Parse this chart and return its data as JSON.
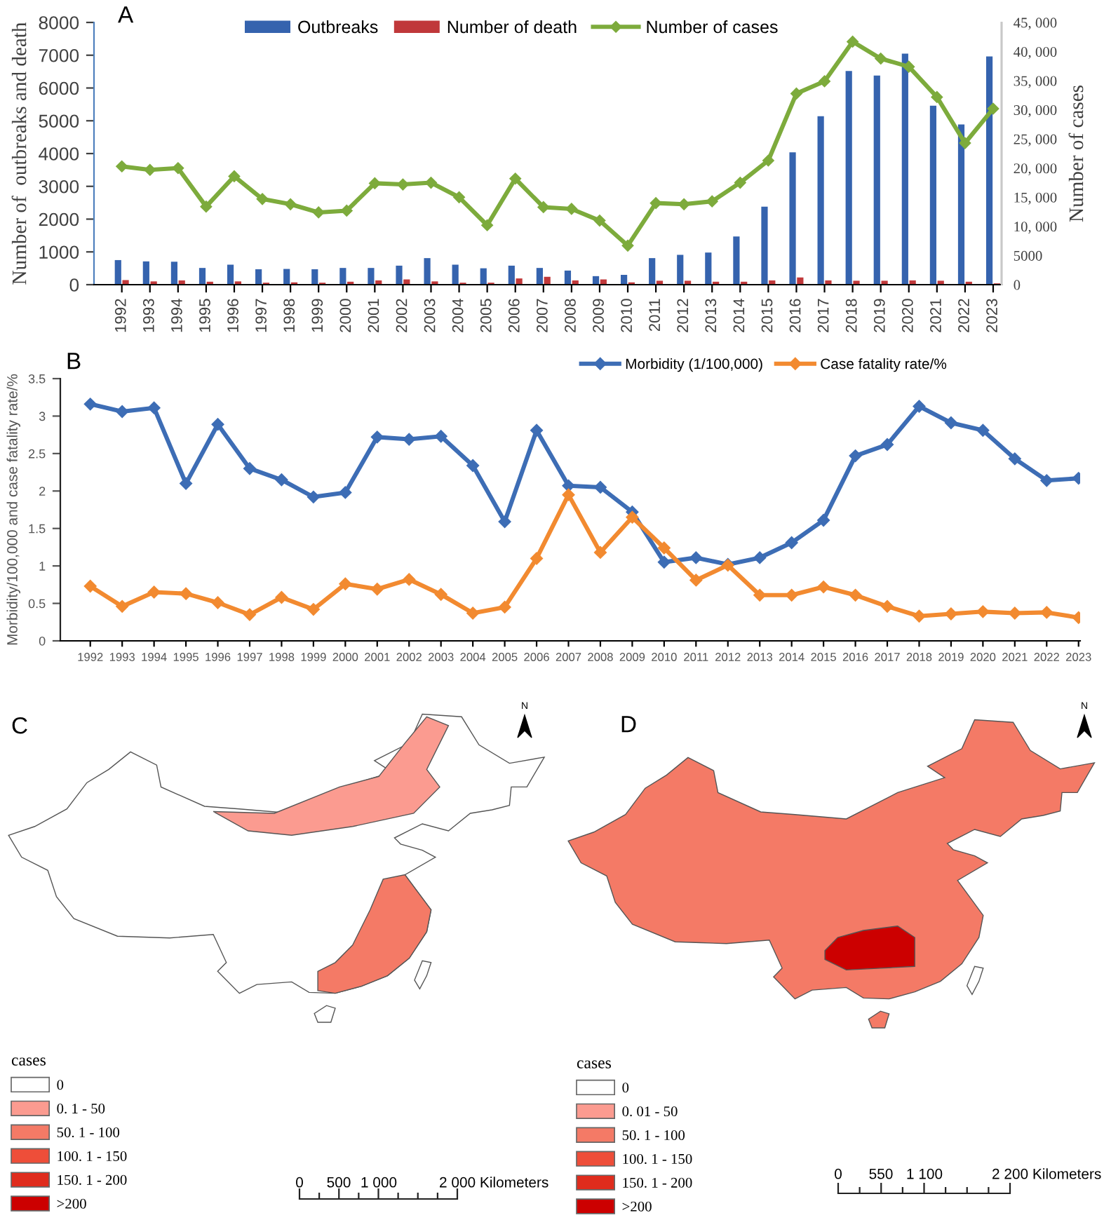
{
  "chart_data": [
    {
      "type": "bar",
      "title": "A",
      "categories": [
        "1992",
        "1993",
        "1994",
        "1995",
        "1996",
        "1997",
        "1998",
        "1999",
        "2000",
        "2001",
        "2002",
        "2003",
        "2004",
        "2005",
        "2006",
        "2007",
        "2008",
        "2009",
        "2010",
        "2011",
        "2012",
        "2013",
        "2014",
        "2015",
        "2016",
        "2017",
        "2018",
        "2019",
        "2020",
        "2021",
        "2022",
        "2023"
      ],
      "ylabel": "Number of  outbreaks and death",
      "y2label": "Number of cases",
      "ylim": [
        0,
        8000
      ],
      "yticks": [
        0,
        1000,
        2000,
        3000,
        4000,
        5000,
        6000,
        7000,
        8000
      ],
      "y2lim": [
        0,
        45000
      ],
      "y2ticks": [
        0,
        5000,
        {
          "value": 10000,
          "label": "10, 000"
        },
        {
          "value": 15000,
          "label": "15, 000"
        },
        {
          "value": 20000,
          "label": "20, 000"
        },
        {
          "value": 25000,
          "label": "25, 000"
        },
        {
          "value": 30000,
          "label": "30, 000"
        },
        {
          "value": 35000,
          "label": "35, 000"
        },
        {
          "value": 40000,
          "label": "40, 000"
        },
        {
          "value": 45000,
          "label": "45, 000"
        }
      ],
      "series": [
        {
          "name": "Outbreaks",
          "color": "#3563ae",
          "values": [
            750,
            710,
            700,
            510,
            610,
            470,
            480,
            470,
            510,
            510,
            580,
            810,
            610,
            500,
            580,
            510,
            430,
            260,
            300,
            810,
            910,
            980,
            1470,
            2380,
            4040,
            5140,
            6520,
            6380,
            7050,
            5460,
            4890,
            6960
          ]
        },
        {
          "name": "Number of death",
          "color": "#c0383a",
          "values": [
            140,
            100,
            130,
            90,
            100,
            60,
            70,
            60,
            90,
            130,
            160,
            100,
            60,
            60,
            190,
            240,
            130,
            160,
            70,
            120,
            120,
            90,
            90,
            130,
            220,
            130,
            120,
            120,
            130,
            120,
            90,
            40
          ]
        },
        {
          "name": "Number of cases",
          "type": "line",
          "axis": "y2",
          "color": "#7dab3c",
          "values": [
            20300,
            19700,
            20000,
            13400,
            18600,
            14700,
            13800,
            12400,
            12700,
            17400,
            17200,
            17500,
            15000,
            10200,
            18200,
            13300,
            13000,
            11000,
            6700,
            14000,
            13800,
            14300,
            17500,
            21300,
            32800,
            34900,
            41700,
            38800,
            37400,
            32200,
            24300,
            30200
          ]
        }
      ],
      "marker": "diamond",
      "line_style": "solid",
      "legend": "top"
    },
    {
      "type": "line",
      "title": "B",
      "categories": [
        "1992",
        "1993",
        "1994",
        "1995",
        "1996",
        "1997",
        "1998",
        "1999",
        "2000",
        "2001",
        "2002",
        "2003",
        "2004",
        "2005",
        "2006",
        "2007",
        "2008",
        "2009",
        "2010",
        "2011",
        "2012",
        "2013",
        "2014",
        "2015",
        "2016",
        "2017",
        "2018",
        "2019",
        "2020",
        "2021",
        "2022",
        "2023"
      ],
      "ylabel": "Morbidity/100,000 and case fatality rate/%",
      "ylim": [
        0,
        3.5
      ],
      "yticks": [
        0,
        0.5,
        1,
        1.5,
        2,
        2.5,
        3,
        3.5
      ],
      "series": [
        {
          "name": "Morbidity (1/100,000)",
          "color": "#3d6db5",
          "values": [
            3.16,
            3.06,
            3.11,
            2.1,
            2.89,
            2.3,
            2.15,
            1.92,
            1.98,
            2.72,
            2.69,
            2.73,
            2.34,
            1.59,
            2.81,
            2.07,
            2.05,
            1.72,
            1.05,
            1.11,
            1.02,
            1.11,
            1.31,
            1.61,
            2.47,
            2.62,
            3.13,
            2.91,
            2.81,
            2.43,
            2.14,
            2.17
          ]
        },
        {
          "name": "Case fatality rate/%",
          "color": "#f28a30",
          "values": [
            0.73,
            0.46,
            0.65,
            0.63,
            0.51,
            0.35,
            0.58,
            0.42,
            0.76,
            0.69,
            0.82,
            0.62,
            0.37,
            0.45,
            1.1,
            1.95,
            1.18,
            1.65,
            1.24,
            0.81,
            1.01,
            0.61,
            0.61,
            0.72,
            0.61,
            0.46,
            0.33,
            0.36,
            0.39,
            0.37,
            0.38,
            0.31
          ]
        }
      ],
      "marker": "diamond",
      "line_style": "solid",
      "legend": "top"
    },
    {
      "type": "other",
      "title": "C",
      "legend_title": "cases",
      "legend": "bottom left",
      "series": [
        {
          "name": "0",
          "color": "#ffffff"
        },
        {
          "name": "0. 1 - 50",
          "color": "#fb9b90"
        },
        {
          "name": "50. 1 - 100",
          "color": "#f47a66"
        },
        {
          "name": "100. 1 - 150",
          "color": "#ee4e39"
        },
        {
          "name": "150. 1 - 200",
          "color": "#df2c1d"
        },
        {
          "name": ">200",
          "color": "#cc0000"
        }
      ],
      "annotations": [
        "N",
        "0",
        "500",
        "1 000",
        "2 000 Kilometers"
      ]
    },
    {
      "type": "other",
      "title": "D",
      "legend_title": "cases",
      "legend": "bottom left",
      "series": [
        {
          "name": "0",
          "color": "#ffffff"
        },
        {
          "name": "0. 01 - 50",
          "color": "#fb9b90"
        },
        {
          "name": "50. 1 - 100",
          "color": "#f47a66"
        },
        {
          "name": "100. 1 - 150",
          "color": "#ee4e39"
        },
        {
          "name": "150. 1 - 200",
          "color": "#df2c1d"
        },
        {
          "name": ">200",
          "color": "#cc0000"
        }
      ],
      "annotations": [
        "N",
        "0",
        "550",
        "1 100",
        "2 200 Kilometers"
      ]
    }
  ]
}
